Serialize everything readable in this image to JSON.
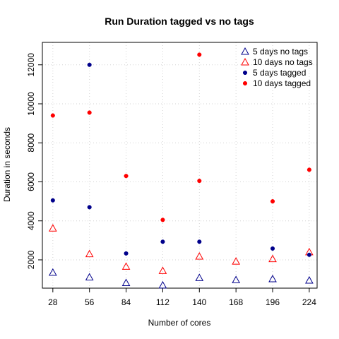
{
  "chart_data": {
    "type": "scatter",
    "title": "Run Duration tagged vs no tags",
    "xlabel": "Number of cores",
    "ylabel": "Duration in seconds",
    "x_ticks": [
      "28",
      "56",
      "84",
      "112",
      "140",
      "168",
      "196",
      "224"
    ],
    "y_ticks": [
      "2000",
      "4000",
      "6000",
      "8000",
      "10000",
      "12000"
    ],
    "xlim": [
      20,
      230
    ],
    "ylim": [
      550,
      13150
    ],
    "grid": true,
    "legend_position": "top-right",
    "series": [
      {
        "name": "5 days no tags",
        "marker": "triangle-open",
        "color": "#00008b",
        "points": [
          [
            28,
            1350
          ],
          [
            56,
            1110
          ],
          [
            84,
            820
          ],
          [
            112,
            700
          ],
          [
            140,
            1080
          ],
          [
            168,
            970
          ],
          [
            196,
            1020
          ],
          [
            224,
            950
          ]
        ]
      },
      {
        "name": "10 days no tags",
        "marker": "triangle-open",
        "color": "#ff0000",
        "points": [
          [
            28,
            3620
          ],
          [
            56,
            2300
          ],
          [
            84,
            1660
          ],
          [
            112,
            1440
          ],
          [
            140,
            2180
          ],
          [
            168,
            1920
          ],
          [
            196,
            2050
          ],
          [
            224,
            2400
          ]
        ]
      },
      {
        "name": "5 days tagged",
        "marker": "dot-filled",
        "color": "#00008b",
        "points": [
          [
            28,
            5050
          ],
          [
            56,
            12000
          ],
          [
            56,
            4700
          ],
          [
            84,
            2330
          ],
          [
            112,
            2930
          ],
          [
            140,
            2930
          ],
          [
            196,
            2580
          ],
          [
            224,
            2260
          ]
        ]
      },
      {
        "name": "10 days tagged",
        "marker": "dot-filled",
        "color": "#ff0000",
        "points": [
          [
            28,
            9400
          ],
          [
            56,
            9550
          ],
          [
            84,
            6300
          ],
          [
            112,
            4050
          ],
          [
            140,
            12520
          ],
          [
            140,
            6050
          ],
          [
            196,
            5000
          ],
          [
            224,
            6620
          ]
        ]
      }
    ]
  }
}
